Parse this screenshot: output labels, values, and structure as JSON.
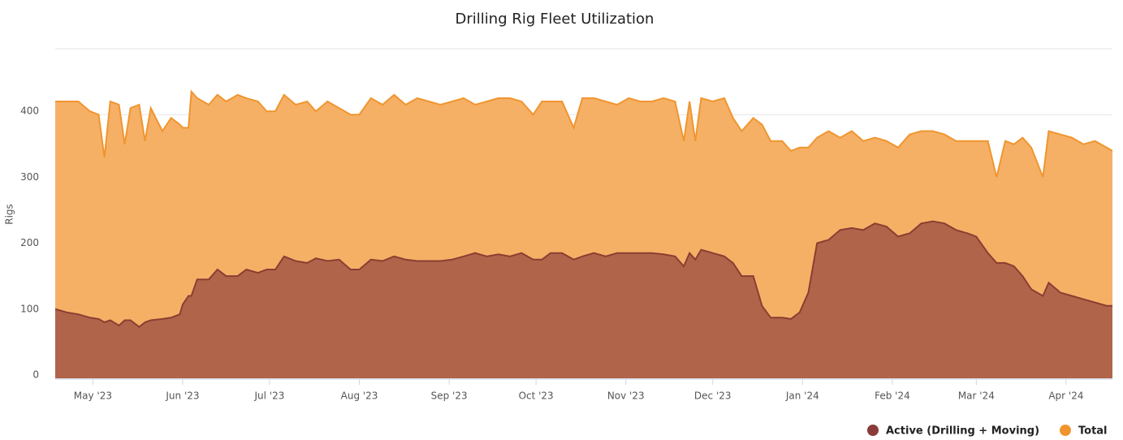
{
  "chart_data": {
    "type": "area",
    "title": "Drilling Rig Fleet Utilization",
    "y_label": "Rigs",
    "x": [
      -13,
      -9,
      -5,
      -1,
      2,
      4,
      6,
      9,
      11,
      13,
      16,
      18,
      20,
      24,
      27,
      30,
      31,
      33,
      34,
      36,
      40,
      43,
      46,
      50,
      53,
      57,
      60,
      63,
      66,
      70,
      74,
      77,
      81,
      85,
      89,
      92,
      96,
      100,
      104,
      108,
      112,
      116,
      120,
      124,
      128,
      132,
      136,
      140,
      144,
      148,
      152,
      155,
      158,
      162,
      166,
      169,
      173,
      177,
      181,
      185,
      189,
      193,
      197,
      201,
      204,
      206,
      208,
      210,
      214,
      218,
      221,
      224,
      228,
      231,
      234,
      238,
      241,
      244,
      247,
      250,
      254,
      258,
      262,
      266,
      270,
      274,
      278,
      282,
      286,
      290,
      294,
      298,
      302,
      305,
      309,
      312,
      315,
      318,
      321,
      324,
      328,
      330,
      334,
      338,
      342,
      346,
      350,
      352
    ],
    "series": [
      {
        "name": "Active (Drilling + Moving)",
        "color": "#8b3a3a",
        "fill": "#b0654a",
        "line": "#8b3e32",
        "values": [
          105,
          100,
          97,
          92,
          90,
          85,
          88,
          80,
          88,
          88,
          78,
          85,
          88,
          90,
          92,
          97,
          112,
          125,
          125,
          150,
          150,
          165,
          155,
          155,
          165,
          160,
          165,
          165,
          185,
          178,
          175,
          182,
          178,
          180,
          165,
          165,
          180,
          178,
          185,
          180,
          178,
          178,
          178,
          180,
          185,
          190,
          185,
          188,
          185,
          190,
          180,
          180,
          190,
          190,
          180,
          185,
          190,
          185,
          190,
          190,
          190,
          190,
          188,
          185,
          170,
          190,
          180,
          195,
          190,
          185,
          175,
          155,
          155,
          110,
          92,
          92,
          90,
          100,
          130,
          205,
          210,
          225,
          228,
          225,
          235,
          230,
          215,
          220,
          235,
          238,
          235,
          225,
          220,
          215,
          190,
          175,
          175,
          170,
          155,
          135,
          125,
          145,
          130,
          125,
          120,
          115,
          110,
          110
        ]
      },
      {
        "name": "Total",
        "color": "#f0952e",
        "fill": "#f5b066",
        "line": "#f0952e",
        "values": [
          420,
          420,
          420,
          405,
          400,
          335,
          420,
          415,
          355,
          410,
          415,
          360,
          410,
          375,
          395,
          385,
          380,
          380,
          435,
          425,
          415,
          430,
          420,
          430,
          425,
          420,
          405,
          405,
          430,
          415,
          420,
          405,
          420,
          410,
          400,
          400,
          425,
          415,
          430,
          415,
          425,
          420,
          415,
          420,
          425,
          415,
          420,
          425,
          425,
          420,
          400,
          420,
          420,
          420,
          380,
          425,
          425,
          420,
          415,
          425,
          420,
          420,
          425,
          420,
          360,
          420,
          360,
          425,
          420,
          425,
          395,
          375,
          395,
          385,
          360,
          360,
          345,
          350,
          350,
          365,
          375,
          365,
          375,
          360,
          365,
          360,
          350,
          370,
          375,
          375,
          370,
          360,
          360,
          360,
          360,
          305,
          360,
          355,
          365,
          350,
          305,
          375,
          370,
          365,
          355,
          360,
          350,
          345
        ]
      }
    ],
    "xlim": [
      -13,
      352
    ],
    "xticks": [
      {
        "value": 0,
        "label": "May '23"
      },
      {
        "value": 31,
        "label": "Jun '23"
      },
      {
        "value": 61,
        "label": "Jul '23"
      },
      {
        "value": 92,
        "label": "Aug '23"
      },
      {
        "value": 123,
        "label": "Sep '23"
      },
      {
        "value": 153,
        "label": "Oct '23"
      },
      {
        "value": 184,
        "label": "Nov '23"
      },
      {
        "value": 214,
        "label": "Dec '23"
      },
      {
        "value": 245,
        "label": "Jan '24"
      },
      {
        "value": 276,
        "label": "Feb '24"
      },
      {
        "value": 305,
        "label": "Mar '24"
      },
      {
        "value": 336,
        "label": "Apr '24"
      }
    ],
    "ylim": [
      0,
      500
    ],
    "yticks": [
      0,
      100,
      200,
      300,
      400
    ],
    "grid": true
  }
}
